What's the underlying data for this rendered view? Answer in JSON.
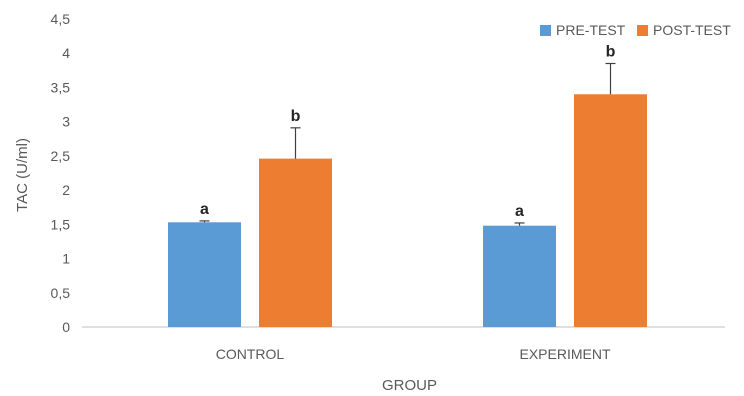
{
  "chart_data": {
    "type": "bar",
    "categories": [
      "CONTROL",
      "EXPERIMENT"
    ],
    "series": [
      {
        "name": "PRE-TEST",
        "color": "#5B9BD5",
        "values": [
          1.53,
          1.48
        ],
        "errors": [
          0.02,
          0.04
        ],
        "labels": [
          "a",
          "a"
        ]
      },
      {
        "name": "POST-TEST",
        "color": "#ED7D31",
        "values": [
          2.46,
          3.4
        ],
        "errors": [
          0.45,
          0.45
        ],
        "labels": [
          "b",
          "b"
        ]
      }
    ],
    "xlabel": "GROUP",
    "ylabel": "TAC (U/ml)",
    "ylim": [
      0,
      4.5
    ],
    "yticks": [
      "0",
      "0,5",
      "1",
      "1,5",
      "2",
      "2,5",
      "3",
      "3,5",
      "4",
      "4,5"
    ],
    "grid": false,
    "legend_position": "top-right"
  }
}
